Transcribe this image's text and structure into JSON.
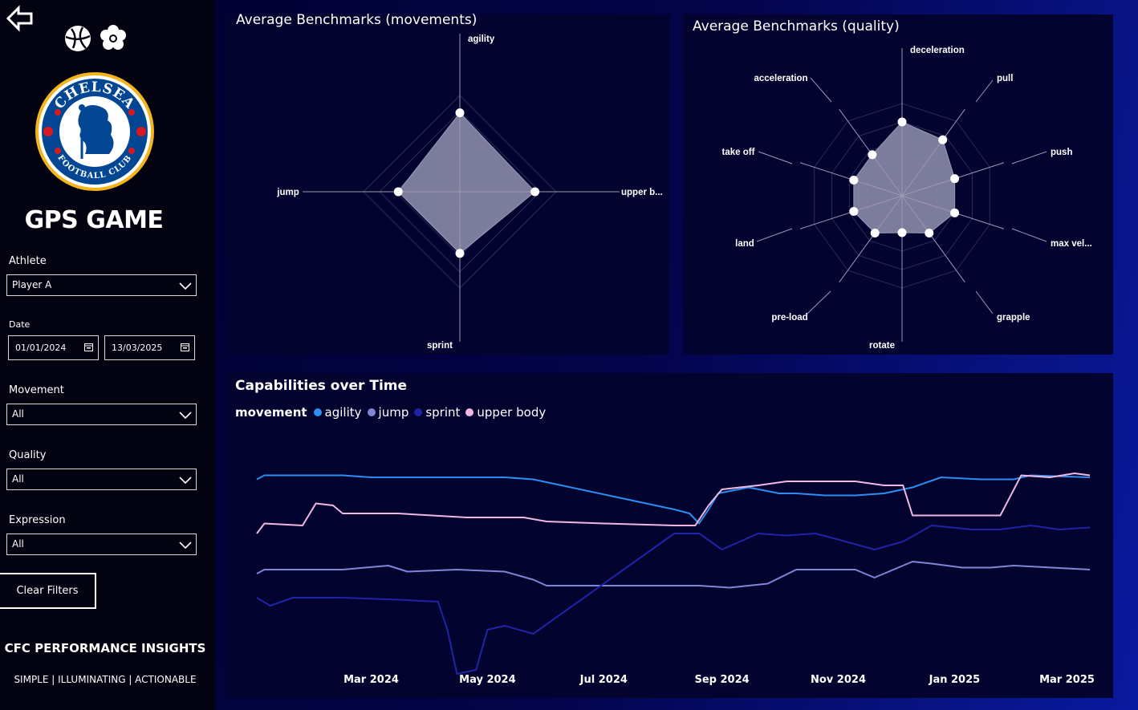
{
  "sidebar": {
    "title": "GPS GAME",
    "filters": {
      "athlete": {
        "label": "Athlete",
        "value": "Player A"
      },
      "date": {
        "label": "Date",
        "start": "01/01/2024",
        "end": "13/03/2025"
      },
      "movement": {
        "label": "Movement",
        "value": "All"
      },
      "quality": {
        "label": "Quality",
        "value": "All"
      },
      "expression": {
        "label": "Expression",
        "value": "All"
      }
    },
    "clear_label": "Clear Filters",
    "brand_name": "CFC PERFORMANCE INSIGHTS",
    "tagline": "SIMPLE | ILLUMINATING | ACTIONABLE",
    "icons": [
      "back-arrow-icon",
      "football-icon",
      "flower-icon",
      "chelsea-crest-logo"
    ],
    "crest_text": "CHELSEA FOOTBALL CLUB"
  },
  "colors": {
    "agility": "#2a8ff0",
    "jump": "#7f86d6",
    "sprint": "#1e24a6",
    "upper_body": "#f2b8e2",
    "radar_fill": "#8a8aa8",
    "panel_bg": "#030330"
  },
  "chart_data": [
    {
      "type": "radar",
      "title": "Average Benchmarks (movements)",
      "axes": [
        "agility",
        "upper b...",
        "sprint",
        "jump"
      ],
      "values": [
        0.82,
        0.78,
        0.64,
        0.64
      ],
      "scale": [
        0,
        1
      ]
    },
    {
      "type": "radar",
      "title": "Average Benchmarks (quality)",
      "axes": [
        "deceleration",
        "pull",
        "push",
        "max vel...",
        "grapple",
        "rotate",
        "pre-load",
        "land",
        "take off",
        "acceleration"
      ],
      "values": [
        0.8,
        0.75,
        0.6,
        0.6,
        0.5,
        0.4,
        0.5,
        0.55,
        0.55,
        0.55
      ],
      "scale": [
        0,
        1
      ]
    },
    {
      "type": "line",
      "title": "Capabilities over Time",
      "legend_title": "movement",
      "x_ticks": [
        "Mar 2024",
        "May 2024",
        "Jul 2024",
        "Sep 2024",
        "Nov 2024",
        "Jan 2025",
        "Mar 2025"
      ],
      "x_range": [
        "2024-01-01",
        "2025-03-13"
      ],
      "ylim": [
        0,
        100
      ],
      "series": [
        {
          "name": "agility",
          "color": "#2a8ff0",
          "points": [
            [
              "2024-01-01",
              85
            ],
            [
              "2024-01-05",
              87
            ],
            [
              "2024-02-15",
              87
            ],
            [
              "2024-03-01",
              86
            ],
            [
              "2024-05-10",
              86
            ],
            [
              "2024-05-25",
              85
            ],
            [
              "2024-08-07",
              70
            ],
            [
              "2024-08-15",
              68
            ],
            [
              "2024-08-20",
              63
            ],
            [
              "2024-08-25",
              70
            ],
            [
              "2024-08-30",
              78
            ],
            [
              "2024-09-15",
              81
            ],
            [
              "2024-10-01",
              78
            ],
            [
              "2024-10-10",
              78
            ],
            [
              "2024-10-25",
              77
            ],
            [
              "2024-11-10",
              77
            ],
            [
              "2024-11-25",
              78
            ],
            [
              "2024-12-10",
              81
            ],
            [
              "2024-12-25",
              86
            ],
            [
              "2025-01-15",
              85
            ],
            [
              "2025-02-01",
              85
            ],
            [
              "2025-02-10",
              87
            ],
            [
              "2025-03-13",
              86
            ]
          ]
        },
        {
          "name": "jump",
          "color": "#7f86d6",
          "points": [
            [
              "2024-01-01",
              38
            ],
            [
              "2024-01-05",
              40
            ],
            [
              "2024-02-15",
              40
            ],
            [
              "2024-03-10",
              42
            ],
            [
              "2024-03-20",
              39
            ],
            [
              "2024-04-15",
              40
            ],
            [
              "2024-05-10",
              39
            ],
            [
              "2024-05-25",
              35
            ],
            [
              "2024-06-01",
              32
            ],
            [
              "2024-07-15",
              32
            ],
            [
              "2024-08-01",
              32
            ],
            [
              "2024-08-20",
              32
            ],
            [
              "2024-09-05",
              31
            ],
            [
              "2024-09-25",
              33
            ],
            [
              "2024-10-10",
              40
            ],
            [
              "2024-10-25",
              40
            ],
            [
              "2024-11-10",
              40
            ],
            [
              "2024-11-20",
              36
            ],
            [
              "2024-11-25",
              38
            ],
            [
              "2024-12-10",
              44
            ],
            [
              "2024-12-20",
              43
            ],
            [
              "2025-01-05",
              41
            ],
            [
              "2025-01-20",
              41
            ],
            [
              "2025-02-01",
              42
            ],
            [
              "2025-03-13",
              40
            ]
          ]
        },
        {
          "name": "sprint",
          "color": "#1e24a6",
          "points": [
            [
              "2024-01-01",
              26
            ],
            [
              "2024-01-08",
              22
            ],
            [
              "2024-01-20",
              26
            ],
            [
              "2024-02-15",
              26
            ],
            [
              "2024-03-15",
              25
            ],
            [
              "2024-04-05",
              24
            ],
            [
              "2024-04-10",
              10
            ],
            [
              "2024-04-15",
              -12
            ],
            [
              "2024-04-25",
              -10
            ],
            [
              "2024-05-01",
              10
            ],
            [
              "2024-05-10",
              12
            ],
            [
              "2024-05-25",
              8
            ],
            [
              "2024-08-07",
              58
            ],
            [
              "2024-08-20",
              58
            ],
            [
              "2024-09-01",
              50
            ],
            [
              "2024-09-20",
              58
            ],
            [
              "2024-10-05",
              57
            ],
            [
              "2024-10-20",
              58
            ],
            [
              "2024-11-01",
              55
            ],
            [
              "2024-11-20",
              50
            ],
            [
              "2024-12-05",
              54
            ],
            [
              "2024-12-20",
              62
            ],
            [
              "2025-01-10",
              60
            ],
            [
              "2025-01-25",
              60
            ],
            [
              "2025-02-10",
              62
            ],
            [
              "2025-02-25",
              60
            ],
            [
              "2025-03-13",
              61
            ]
          ]
        },
        {
          "name": "upper body",
          "color": "#f2b8e2",
          "points": [
            [
              "2024-01-01",
              58
            ],
            [
              "2024-01-05",
              63
            ],
            [
              "2024-01-25",
              62
            ],
            [
              "2024-02-01",
              73
            ],
            [
              "2024-02-10",
              72
            ],
            [
              "2024-02-15",
              68
            ],
            [
              "2024-03-15",
              68
            ],
            [
              "2024-04-20",
              66
            ],
            [
              "2024-05-20",
              66
            ],
            [
              "2024-06-01",
              64
            ],
            [
              "2024-07-01",
              63
            ],
            [
              "2024-08-07",
              62
            ],
            [
              "2024-08-18",
              62
            ],
            [
              "2024-08-25",
              72
            ],
            [
              "2024-09-01",
              80
            ],
            [
              "2024-09-20",
              82
            ],
            [
              "2024-10-05",
              84
            ],
            [
              "2024-10-20",
              84
            ],
            [
              "2024-11-10",
              84
            ],
            [
              "2024-11-25",
              82
            ],
            [
              "2024-12-05",
              82
            ],
            [
              "2024-12-10",
              67
            ],
            [
              "2024-12-25",
              67
            ],
            [
              "2025-01-10",
              67
            ],
            [
              "2025-01-25",
              67
            ],
            [
              "2025-02-05",
              87
            ],
            [
              "2025-02-20",
              86
            ],
            [
              "2025-03-05",
              88
            ],
            [
              "2025-03-13",
              87
            ]
          ]
        }
      ]
    }
  ]
}
